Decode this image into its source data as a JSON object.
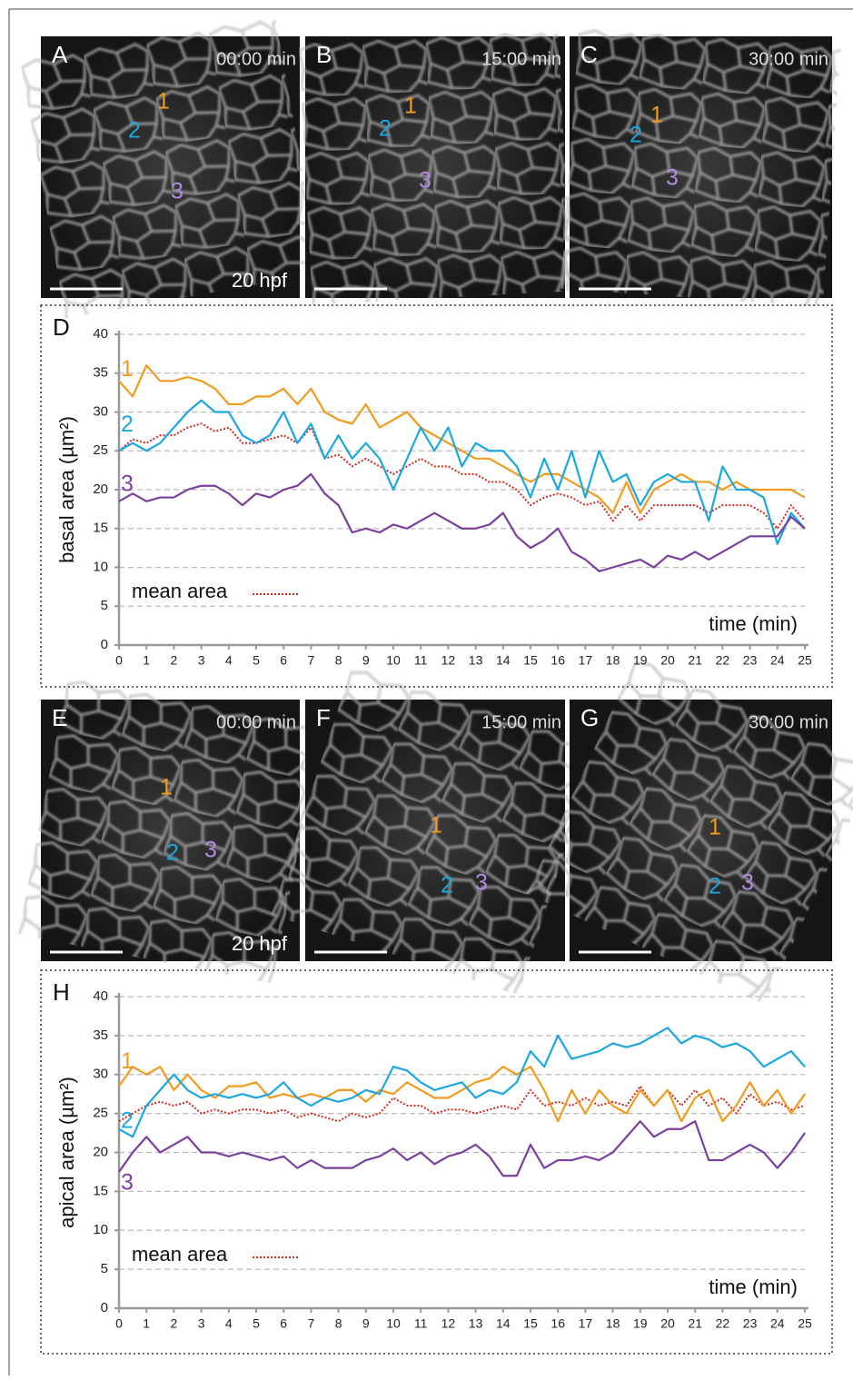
{
  "figure_panels": [
    {
      "letter": "A",
      "time": "00:00 min",
      "cells": [
        "1",
        "2",
        "3"
      ],
      "stage": "20 hpf"
    },
    {
      "letter": "B",
      "time": "15:00 min",
      "cells": [
        "1",
        "2",
        "3"
      ]
    },
    {
      "letter": "C",
      "time": "30:00 min",
      "cells": [
        "1",
        "2",
        "3"
      ]
    },
    {
      "letter": "E",
      "time": "00:00 min",
      "cells": [
        "1",
        "2",
        "3"
      ],
      "stage": "20 hpf"
    },
    {
      "letter": "F",
      "time": "15:00 min",
      "cells": [
        "1",
        "2",
        "3"
      ]
    },
    {
      "letter": "G",
      "time": "30:00 min",
      "cells": [
        "1",
        "2",
        "3"
      ]
    }
  ],
  "chart_data": [
    {
      "type": "line",
      "panel": "D",
      "y_label": "basal area (µm²)",
      "x_label": "time (min)",
      "grid": true,
      "x": [
        0,
        0.5,
        1,
        1.5,
        2,
        2.5,
        3,
        3.5,
        4,
        4.5,
        5,
        5.5,
        6,
        6.5,
        7,
        7.5,
        8,
        8.5,
        9,
        9.5,
        10,
        10.5,
        11,
        11.5,
        12,
        12.5,
        13,
        13.5,
        14,
        14.5,
        15,
        15.5,
        16,
        16.5,
        17,
        17.5,
        18,
        18.5,
        19,
        19.5,
        20,
        20.5,
        21,
        21.5,
        22,
        22.5,
        23,
        23.5,
        24,
        24.5,
        25
      ],
      "xlim": [
        0,
        25
      ],
      "xticks": [
        0,
        1,
        2,
        3,
        4,
        5,
        6,
        7,
        8,
        9,
        10,
        11,
        12,
        13,
        14,
        15,
        16,
        17,
        18,
        19,
        20,
        21,
        22,
        23,
        24,
        25
      ],
      "ylim": [
        0,
        40
      ],
      "yticks": [
        0,
        5,
        10,
        15,
        20,
        25,
        30,
        35,
        40
      ],
      "series": [
        {
          "name": "1",
          "color": "#f39a1e",
          "values": [
            34,
            32,
            36,
            34,
            34,
            34.5,
            34,
            33,
            31,
            31,
            32,
            32,
            33,
            31,
            33,
            30,
            29,
            28.5,
            31,
            28,
            29,
            30,
            28,
            27,
            26,
            25,
            24,
            24,
            23,
            22,
            21,
            22,
            22,
            21,
            20,
            19,
            17,
            21,
            17,
            20,
            21,
            22,
            21,
            21,
            20,
            21,
            20,
            20,
            20,
            20,
            19
          ]
        },
        {
          "name": "2",
          "color": "#1aa7e0",
          "values": [
            25,
            26,
            25,
            26,
            28,
            30,
            31.5,
            30,
            30,
            27,
            26,
            27,
            30,
            26,
            28.5,
            24,
            27,
            24,
            26,
            24,
            20,
            24,
            28,
            25,
            28,
            23,
            26,
            25,
            25,
            23,
            19,
            24,
            20,
            25,
            19,
            25,
            21,
            22,
            18,
            21,
            22,
            21,
            21,
            16,
            23,
            20,
            20,
            19,
            13,
            17,
            15
          ]
        },
        {
          "name": "3",
          "color": "#7b3fa0",
          "values": [
            18.5,
            19.5,
            18.5,
            19,
            19,
            20,
            20.5,
            20.5,
            19.5,
            18,
            19.5,
            19,
            20,
            20.5,
            22,
            19.5,
            18,
            14.5,
            15,
            14.5,
            15.5,
            15,
            16,
            17,
            16,
            15,
            15,
            15.5,
            17,
            14,
            12.5,
            13.5,
            15,
            12,
            11,
            9.5,
            10,
            10.5,
            11,
            10,
            11.5,
            11,
            12,
            11,
            12,
            13,
            14,
            14,
            14,
            16.5,
            15
          ]
        },
        {
          "name": "mean area",
          "color": "#d7261e",
          "line_style": "dotted",
          "values": [
            25,
            26.5,
            26,
            27,
            27,
            28,
            28.5,
            27.5,
            28,
            26,
            26,
            26.5,
            27,
            26,
            28,
            24,
            24.5,
            23,
            24,
            23,
            22,
            23,
            24,
            23,
            23,
            22,
            22,
            21,
            21,
            20,
            18,
            19,
            19.5,
            19,
            18,
            18.5,
            16,
            18,
            16,
            18,
            18,
            18,
            18,
            17,
            18,
            18,
            18,
            17,
            15,
            18,
            16
          ]
        }
      ]
    },
    {
      "type": "line",
      "panel": "H",
      "y_label": "apical area (µm²)",
      "x_label": "time (min)",
      "grid": true,
      "x": [
        0,
        0.5,
        1,
        1.5,
        2,
        2.5,
        3,
        3.5,
        4,
        4.5,
        5,
        5.5,
        6,
        6.5,
        7,
        7.5,
        8,
        8.5,
        9,
        9.5,
        10,
        10.5,
        11,
        11.5,
        12,
        12.5,
        13,
        13.5,
        14,
        14.5,
        15,
        15.5,
        16,
        16.5,
        17,
        17.5,
        18,
        18.5,
        19,
        19.5,
        20,
        20.5,
        21,
        21.5,
        22,
        22.5,
        23,
        23.5,
        24,
        24.5,
        25
      ],
      "xlim": [
        0,
        25
      ],
      "xticks": [
        0,
        1,
        2,
        3,
        4,
        5,
        6,
        7,
        8,
        9,
        10,
        11,
        12,
        13,
        14,
        15,
        16,
        17,
        18,
        19,
        20,
        21,
        22,
        23,
        24,
        25
      ],
      "ylim": [
        0,
        40
      ],
      "yticks": [
        0,
        5,
        10,
        15,
        20,
        25,
        30,
        35,
        40
      ],
      "series": [
        {
          "name": "1",
          "color": "#f39a1e",
          "values": [
            28.5,
            31,
            30,
            31,
            28,
            30,
            28,
            27,
            28.5,
            28.5,
            29,
            27,
            27.5,
            27,
            27.5,
            27,
            28,
            28,
            26.5,
            28,
            27.5,
            29,
            28,
            27,
            27,
            28,
            29,
            29.5,
            31,
            30,
            31,
            28,
            24,
            28,
            25,
            28,
            26,
            25,
            28,
            26,
            28,
            24,
            27,
            28,
            24,
            26,
            29,
            26,
            28,
            25,
            27.5
          ]
        },
        {
          "name": "2",
          "color": "#1aa7e0",
          "values": [
            23,
            22,
            26,
            28,
            30,
            28,
            27,
            27.5,
            27,
            27.5,
            27,
            27.5,
            29,
            27,
            26,
            27,
            26.5,
            27,
            28,
            27.5,
            31,
            30.5,
            29,
            28,
            28.5,
            29,
            27,
            28,
            27.5,
            29,
            33,
            31,
            35,
            32,
            32.5,
            33,
            34,
            33.5,
            34,
            35,
            36,
            34,
            35,
            34.5,
            33.5,
            34,
            33,
            31,
            32,
            33,
            31
          ]
        },
        {
          "name": "3",
          "color": "#7b3fa0",
          "values": [
            17.5,
            20,
            22,
            20,
            21,
            22,
            20,
            20,
            19.5,
            20,
            19.5,
            19,
            19.5,
            18,
            19,
            18,
            18,
            18,
            19,
            19.5,
            20.5,
            19,
            20,
            18.5,
            19.5,
            20,
            21,
            19.5,
            17,
            17,
            21,
            18,
            19,
            19,
            19.5,
            19,
            20,
            22,
            24,
            22,
            23,
            23,
            24,
            19,
            19,
            20,
            21,
            20,
            18,
            20,
            22.5
          ]
        },
        {
          "name": "mean area",
          "color": "#d7261e",
          "line_style": "dotted",
          "values": [
            24,
            25,
            26,
            26.5,
            26,
            26.5,
            25,
            25.5,
            25,
            25.5,
            25.5,
            25,
            25.5,
            24.5,
            25,
            24.5,
            24,
            25,
            24.5,
            25,
            27,
            26,
            26,
            25,
            25.5,
            25.5,
            25,
            25.5,
            26,
            25.5,
            28,
            26,
            26.5,
            26,
            27,
            26,
            26.5,
            26,
            28.5,
            26,
            28,
            26,
            28,
            26,
            27,
            25,
            27.5,
            26,
            26.5,
            25.5,
            26
          ]
        }
      ]
    }
  ]
}
